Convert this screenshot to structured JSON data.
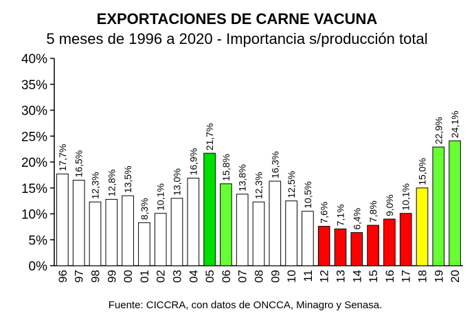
{
  "chart_data": {
    "type": "bar",
    "title": "EXPORTACIONES DE CARNE VACUNA",
    "subtitle": "5 meses de 1996 a 2020 - Importancia s/producción total",
    "source": "Fuente: CICCRA, con datos de ONCCA, Minagro y Senasa.",
    "ylim": [
      0,
      40
    ],
    "yticks": [
      "0%",
      "5%",
      "10%",
      "15%",
      "20%",
      "25%",
      "30%",
      "35%",
      "40%"
    ],
    "categories": [
      "96",
      "97",
      "98",
      "99",
      "00",
      "01",
      "02",
      "03",
      "04",
      "05",
      "06",
      "07",
      "08",
      "09",
      "10",
      "11",
      "12",
      "13",
      "14",
      "15",
      "16",
      "17",
      "18",
      "19",
      "20"
    ],
    "values": [
      17.7,
      16.5,
      12.3,
      12.8,
      13.5,
      8.3,
      10.1,
      13.0,
      16.9,
      21.7,
      15.8,
      13.8,
      12.3,
      16.3,
      12.5,
      10.5,
      7.6,
      7.1,
      6.4,
      7.8,
      9.0,
      10.1,
      15.0,
      22.9,
      24.1
    ],
    "labels": [
      "17,7%",
      "16,5%",
      "12,3%",
      "12,8%",
      "13,5%",
      "8,3%",
      "10,1%",
      "13,0%",
      "16,9%",
      "21,7%",
      "15,8%",
      "13,8%",
      "12,3%",
      "16,3%",
      "12,5%",
      "10,5%",
      "7,6%",
      "7,1%",
      "6,4%",
      "7,8%",
      "9,0%",
      "10,1%",
      "15,0%",
      "22,9%",
      "24,1%"
    ],
    "colors": [
      "#ffffff",
      "#ffffff",
      "#ffffff",
      "#ffffff",
      "#ffffff",
      "#ffffff",
      "#ffffff",
      "#ffffff",
      "#ffffff",
      "#00dd00",
      "#66ff33",
      "#ffffff",
      "#ffffff",
      "#ffffff",
      "#ffffff",
      "#ffffff",
      "#ff0000",
      "#ff0000",
      "#ff0000",
      "#ff0000",
      "#ff0000",
      "#ff0000",
      "#ffff00",
      "#66ff33",
      "#66ff33"
    ],
    "grid": false,
    "legend": "none"
  }
}
